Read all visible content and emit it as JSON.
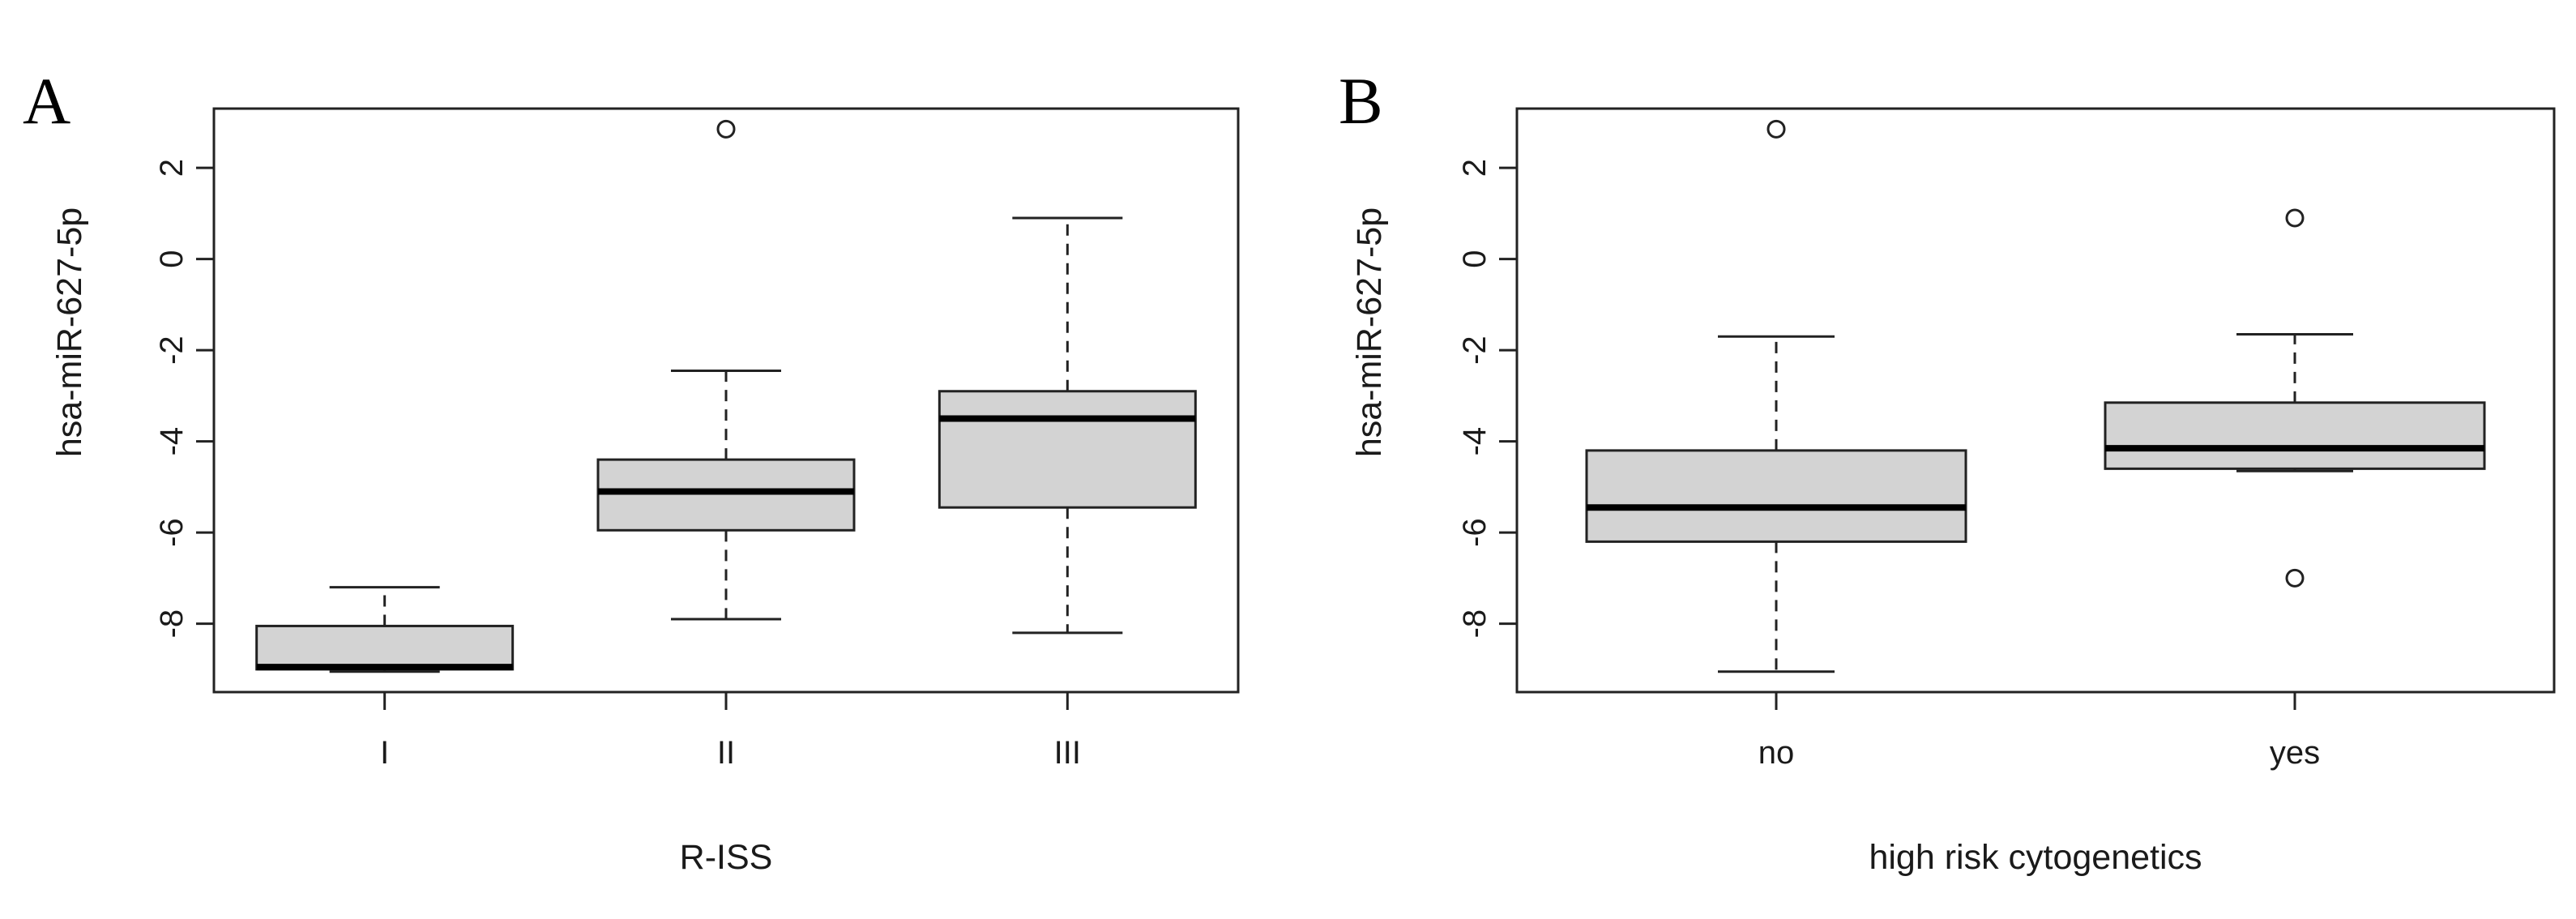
{
  "panels": [
    {
      "letter": "A"
    },
    {
      "letter": "B"
    }
  ],
  "chart_data": [
    {
      "type": "box",
      "panel": "A",
      "xlabel": "R-ISS",
      "ylabel": "hsa-miR-627-5p",
      "ylim": [
        -9.5,
        3.3
      ],
      "yticks": [
        -8,
        -6,
        -4,
        -2,
        0,
        2
      ],
      "categories": [
        "I",
        "II",
        "III"
      ],
      "boxes": [
        {
          "category": "I",
          "whisker_low": -9.05,
          "q1": -9.0,
          "median": -8.95,
          "q3": -8.05,
          "whisker_high": -7.2,
          "outliers": []
        },
        {
          "category": "II",
          "whisker_low": -7.9,
          "q1": -5.95,
          "median": -5.1,
          "q3": -4.4,
          "whisker_high": -2.45,
          "outliers": [
            2.85
          ]
        },
        {
          "category": "III",
          "whisker_low": -8.2,
          "q1": -5.45,
          "median": -3.5,
          "q3": -2.9,
          "whisker_high": 0.9,
          "outliers": []
        }
      ],
      "box_color": "#d3d3d3"
    },
    {
      "type": "box",
      "panel": "B",
      "xlabel": "high risk cytogenetics",
      "ylabel": "hsa-miR-627-5p",
      "ylim": [
        -9.5,
        3.3
      ],
      "yticks": [
        -8,
        -6,
        -4,
        -2,
        0,
        2
      ],
      "categories": [
        "no",
        "yes"
      ],
      "boxes": [
        {
          "category": "no",
          "whisker_low": -9.05,
          "q1": -6.2,
          "median": -5.45,
          "q3": -4.2,
          "whisker_high": -1.7,
          "outliers": [
            2.85
          ]
        },
        {
          "category": "yes",
          "whisker_low": -4.65,
          "q1": -4.6,
          "median": -4.15,
          "q3": -3.15,
          "whisker_high": -1.65,
          "outliers": [
            0.9,
            -7.0
          ]
        }
      ],
      "box_color": "#d3d3d3"
    }
  ]
}
